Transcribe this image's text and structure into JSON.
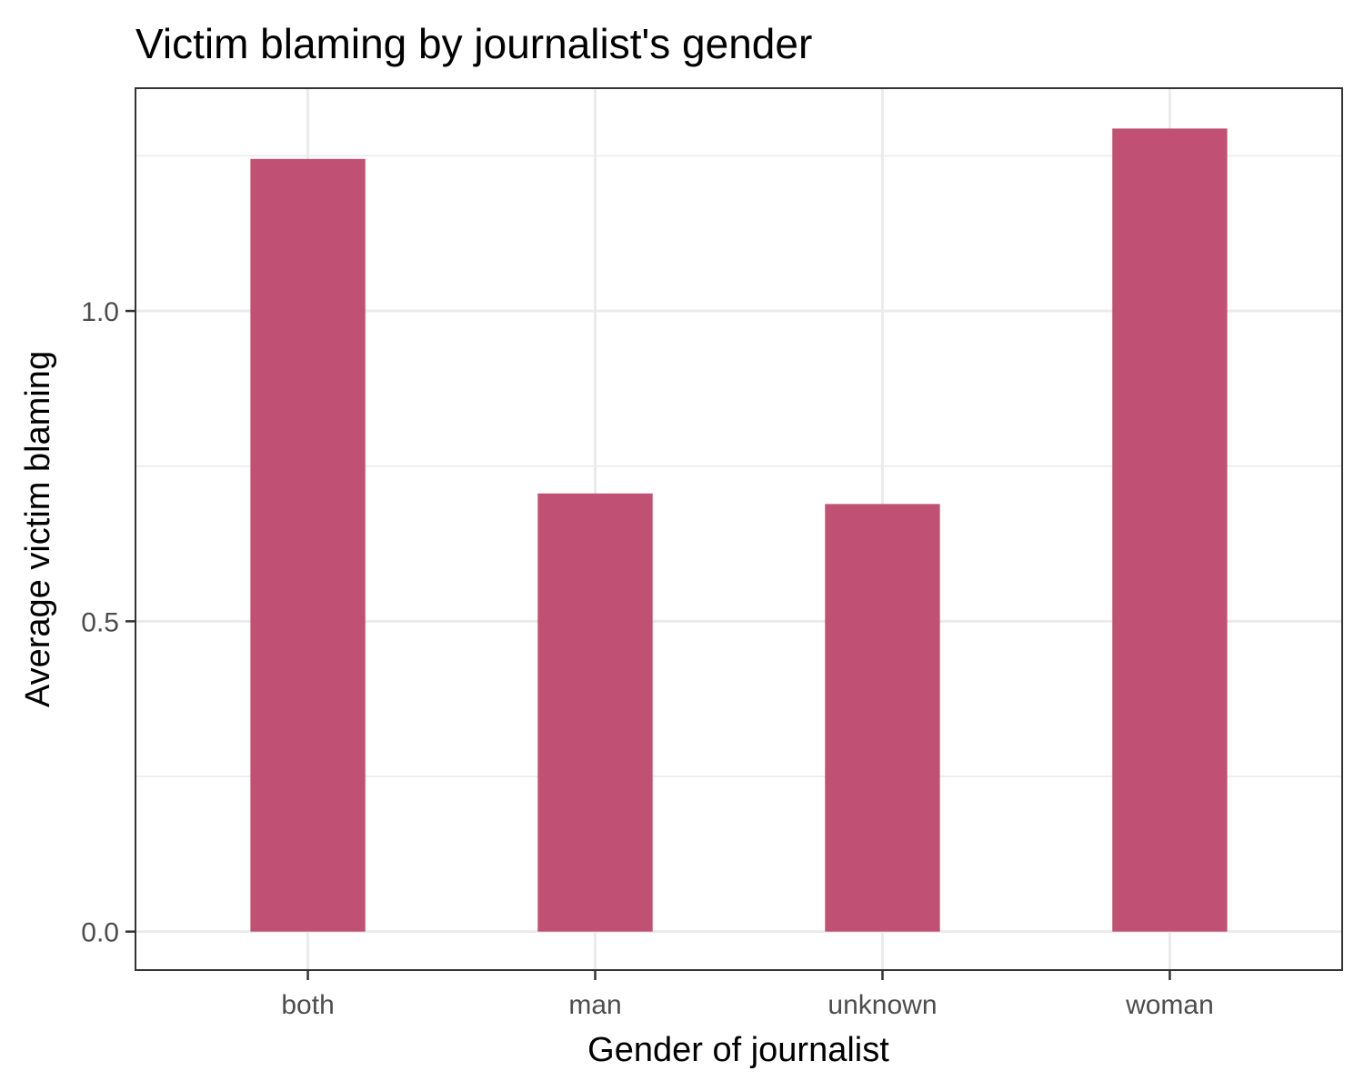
{
  "chart_data": {
    "type": "bar",
    "title": "Victim blaming by journalist's gender",
    "xlabel": "Gender of journalist",
    "ylabel": "Average victim blaming",
    "categories": [
      "both",
      "man",
      "unknown",
      "woman"
    ],
    "values": [
      1.245,
      0.706,
      0.689,
      1.294
    ],
    "ylim": [
      -0.062,
      1.359
    ],
    "yticks": [
      0.0,
      0.5,
      1.0
    ],
    "ytick_labels": [
      "0.0",
      "0.5",
      "1.0"
    ],
    "grid": true,
    "legend": "none",
    "colors": {
      "bar": "#c05174",
      "grid": "#ebebeb",
      "panel_border": "#333333",
      "tick_mark": "#333333"
    }
  }
}
